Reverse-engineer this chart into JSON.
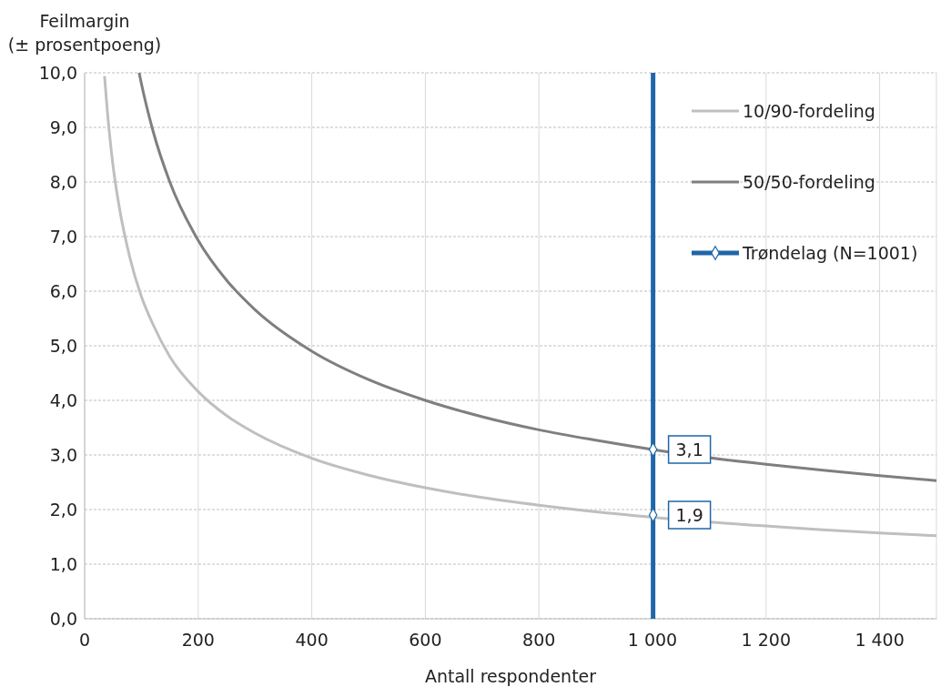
{
  "chart_data": {
    "type": "line",
    "xlabel": "Antall respondenter",
    "ylabel": "Feilmargin\n(± prosentpoeng)",
    "xlim": [
      0,
      1500
    ],
    "xticks": [
      0,
      200,
      400,
      600,
      800,
      {
        "value": 1000,
        "label": "1 000"
      },
      {
        "value": 1200,
        "label": "1 200"
      },
      {
        "value": 1400,
        "label": "1 400"
      }
    ],
    "ylim": [
      0,
      10
    ],
    "yticks": [
      {
        "value": 0,
        "label": "0,0"
      },
      {
        "value": 1,
        "label": "1,0"
      },
      {
        "value": 2,
        "label": "2,0"
      },
      {
        "value": 3,
        "label": "3,0"
      },
      {
        "value": 4,
        "label": "4,0"
      },
      {
        "value": 5,
        "label": "5,0"
      },
      {
        "value": 6,
        "label": "6,0"
      },
      {
        "value": 7,
        "label": "7,0"
      },
      {
        "value": 8,
        "label": "8,0"
      },
      {
        "value": 9,
        "label": "9,0"
      },
      {
        "value": 10,
        "label": "10,0"
      }
    ],
    "grid": true,
    "legend": "top right",
    "series": [
      {
        "name": "10/90-fordeling",
        "color": "#bfbfbf",
        "x": [
          35,
          40,
          50,
          60,
          80,
          100,
          120,
          150,
          200,
          250,
          300,
          400,
          500,
          600,
          700,
          800,
          900,
          1000,
          1100,
          1200,
          1300,
          1400,
          1500
        ],
        "values": [
          9.94,
          9.3,
          8.3,
          7.6,
          6.6,
          5.9,
          5.4,
          4.8,
          4.16,
          3.72,
          3.4,
          2.94,
          2.63,
          2.4,
          2.22,
          2.08,
          1.96,
          1.86,
          1.77,
          1.7,
          1.63,
          1.57,
          1.52
        ]
      },
      {
        "name": "50/50-fordeling",
        "color": "#7f7f7f",
        "x": [
          96,
          100,
          120,
          150,
          200,
          250,
          300,
          400,
          500,
          600,
          700,
          800,
          900,
          1000,
          1100,
          1200,
          1300,
          1400,
          1500
        ],
        "values": [
          10,
          9.8,
          8.95,
          8.0,
          6.93,
          6.2,
          5.66,
          4.9,
          4.38,
          4.0,
          3.7,
          3.46,
          3.27,
          3.1,
          2.95,
          2.83,
          2.72,
          2.62,
          2.53
        ]
      },
      {
        "name": "Trøndelag (N=1001)",
        "color": "#1f66a8",
        "marker": "diamond",
        "x": [
          1001,
          1001,
          1001,
          1001
        ],
        "values": [
          0,
          1.9,
          3.1,
          10
        ],
        "value_labels": [
          null,
          "1,9",
          "3,1",
          null
        ]
      }
    ]
  }
}
